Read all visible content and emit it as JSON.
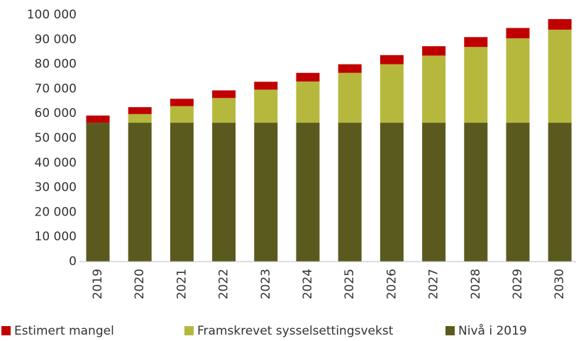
{
  "chart_data": {
    "type": "stacked_bar",
    "categories": [
      "2019",
      "2020",
      "2021",
      "2022",
      "2023",
      "2024",
      "2025",
      "2026",
      "2027",
      "2028",
      "2029",
      "2030"
    ],
    "series": [
      {
        "name": "Estimert mangel",
        "color": "#c00000",
        "values": [
          2900,
          2800,
          3000,
          3100,
          3200,
          3500,
          3500,
          3700,
          3800,
          4000,
          4200,
          4300
        ]
      },
      {
        "name": "Framskrevet sysselsettingsvekst",
        "color": "#b5b83c",
        "values": [
          0,
          3500,
          6700,
          10000,
          13400,
          16700,
          20200,
          23700,
          27200,
          30700,
          34200,
          37700
        ]
      },
      {
        "name": "Nivå i 2019",
        "color": "#5a5a1e",
        "values": [
          56300,
          56300,
          56300,
          56300,
          56300,
          56300,
          56300,
          56300,
          56300,
          56300,
          56300,
          56300
        ]
      }
    ],
    "ylim": [
      0,
      100000
    ],
    "yticks": [
      0,
      {
        "value": 10000,
        "label": "10 000"
      },
      {
        "value": 20000,
        "label": "20 000"
      },
      {
        "value": 30000,
        "label": "30 000"
      },
      {
        "value": 40000,
        "label": "40 000"
      },
      {
        "value": 50000,
        "label": "50 000"
      },
      {
        "value": 60000,
        "label": "60 000"
      },
      {
        "value": 70000,
        "label": "70 000"
      },
      {
        "value": 80000,
        "label": "80 000"
      },
      {
        "value": 90000,
        "label": "90 000"
      },
      {
        "value": 100000,
        "label": "100 000"
      }
    ],
    "grid": false,
    "legend": "bottom"
  }
}
